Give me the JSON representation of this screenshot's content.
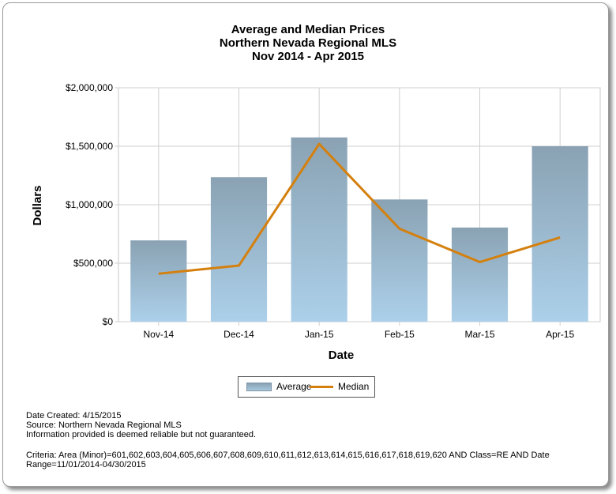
{
  "chart_data": {
    "type": "bar",
    "title": [
      "Average and Median Prices",
      "Northern Nevada Regional MLS",
      "Nov 2014 - Apr 2015"
    ],
    "xlabel": "Date",
    "ylabel": "Dollars",
    "categories": [
      "Nov-14",
      "Dec-14",
      "Jan-15",
      "Feb-15",
      "Mar-15",
      "Apr-15"
    ],
    "ylim": [
      0,
      2000000
    ],
    "yticks": [
      0,
      500000,
      1000000,
      1500000,
      2000000
    ],
    "ytick_labels": [
      "$0",
      "$500,000",
      "$1,000,000",
      "$1,500,000",
      "$2,000,000"
    ],
    "grid": true,
    "legend_position": "bottom",
    "series": [
      {
        "name": "Average",
        "type": "bar",
        "color": "#9db5c6",
        "values": [
          695000,
          1235000,
          1575000,
          1045000,
          805000,
          1500000
        ]
      },
      {
        "name": "Median",
        "type": "line",
        "color": "#d4800e",
        "values": [
          410000,
          480000,
          1520000,
          795000,
          510000,
          720000
        ]
      }
    ]
  },
  "footer": {
    "date_created": "Date Created: 4/15/2015",
    "source": "Source: Northern Nevada Regional MLS",
    "disclaimer": "Information provided is deemed reliable but not guaranteed.",
    "criteria": "Criteria: Area (Minor)=601,602,603,604,605,606,607,608,609,610,611,612,613,614,615,616,617,618,619,620 AND Class=RE AND Date Range=11/01/2014-04/30/2015"
  }
}
